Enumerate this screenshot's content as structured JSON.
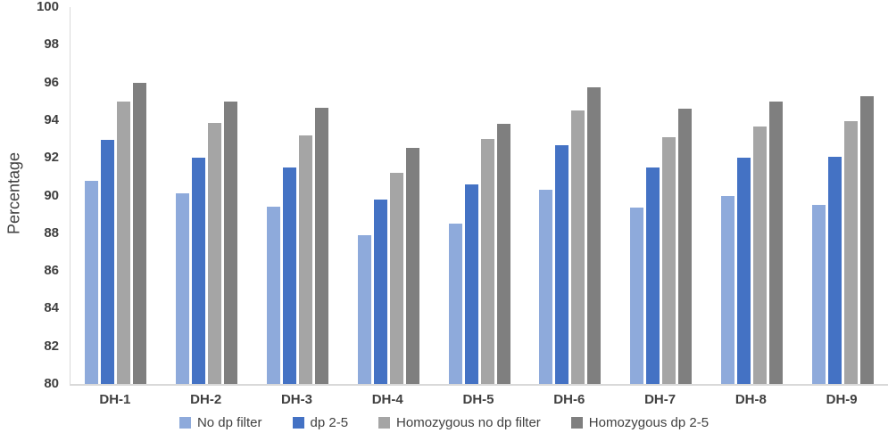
{
  "figure": {
    "background": "#FFFFFF",
    "text_color": "#404040",
    "axis_line_color": "#D9D9D9"
  },
  "chart_data": {
    "type": "bar",
    "title": "",
    "xlabel": "",
    "ylabel": "Percentage",
    "ylim": [
      80,
      100
    ],
    "ytick_step": 2,
    "grid": false,
    "legend_position": "bottom",
    "categories": [
      "DH-1",
      "DH-2",
      "DH-3",
      "DH-4",
      "DH-5",
      "DH-6",
      "DH-7",
      "DH-8",
      "DH-9"
    ],
    "series": [
      {
        "name": "No dp filter",
        "color": "#8EAADB",
        "values": [
          90.8,
          90.1,
          89.4,
          87.9,
          88.5,
          90.3,
          89.35,
          90.0,
          89.5
        ]
      },
      {
        "name": "dp 2-5",
        "color": "#4472C4",
        "values": [
          92.95,
          92.0,
          91.5,
          89.8,
          90.6,
          92.65,
          91.5,
          92.0,
          92.05
        ]
      },
      {
        "name": "Homozygous no dp filter",
        "color": "#A5A5A5",
        "values": [
          95.0,
          93.85,
          93.2,
          91.2,
          93.0,
          94.5,
          93.1,
          93.65,
          93.95
        ]
      },
      {
        "name": "Homozygous dp 2-5",
        "color": "#7F7F7F",
        "values": [
          96.0,
          95.0,
          94.65,
          92.55,
          93.8,
          95.75,
          94.6,
          95.0,
          95.25
        ]
      }
    ]
  }
}
